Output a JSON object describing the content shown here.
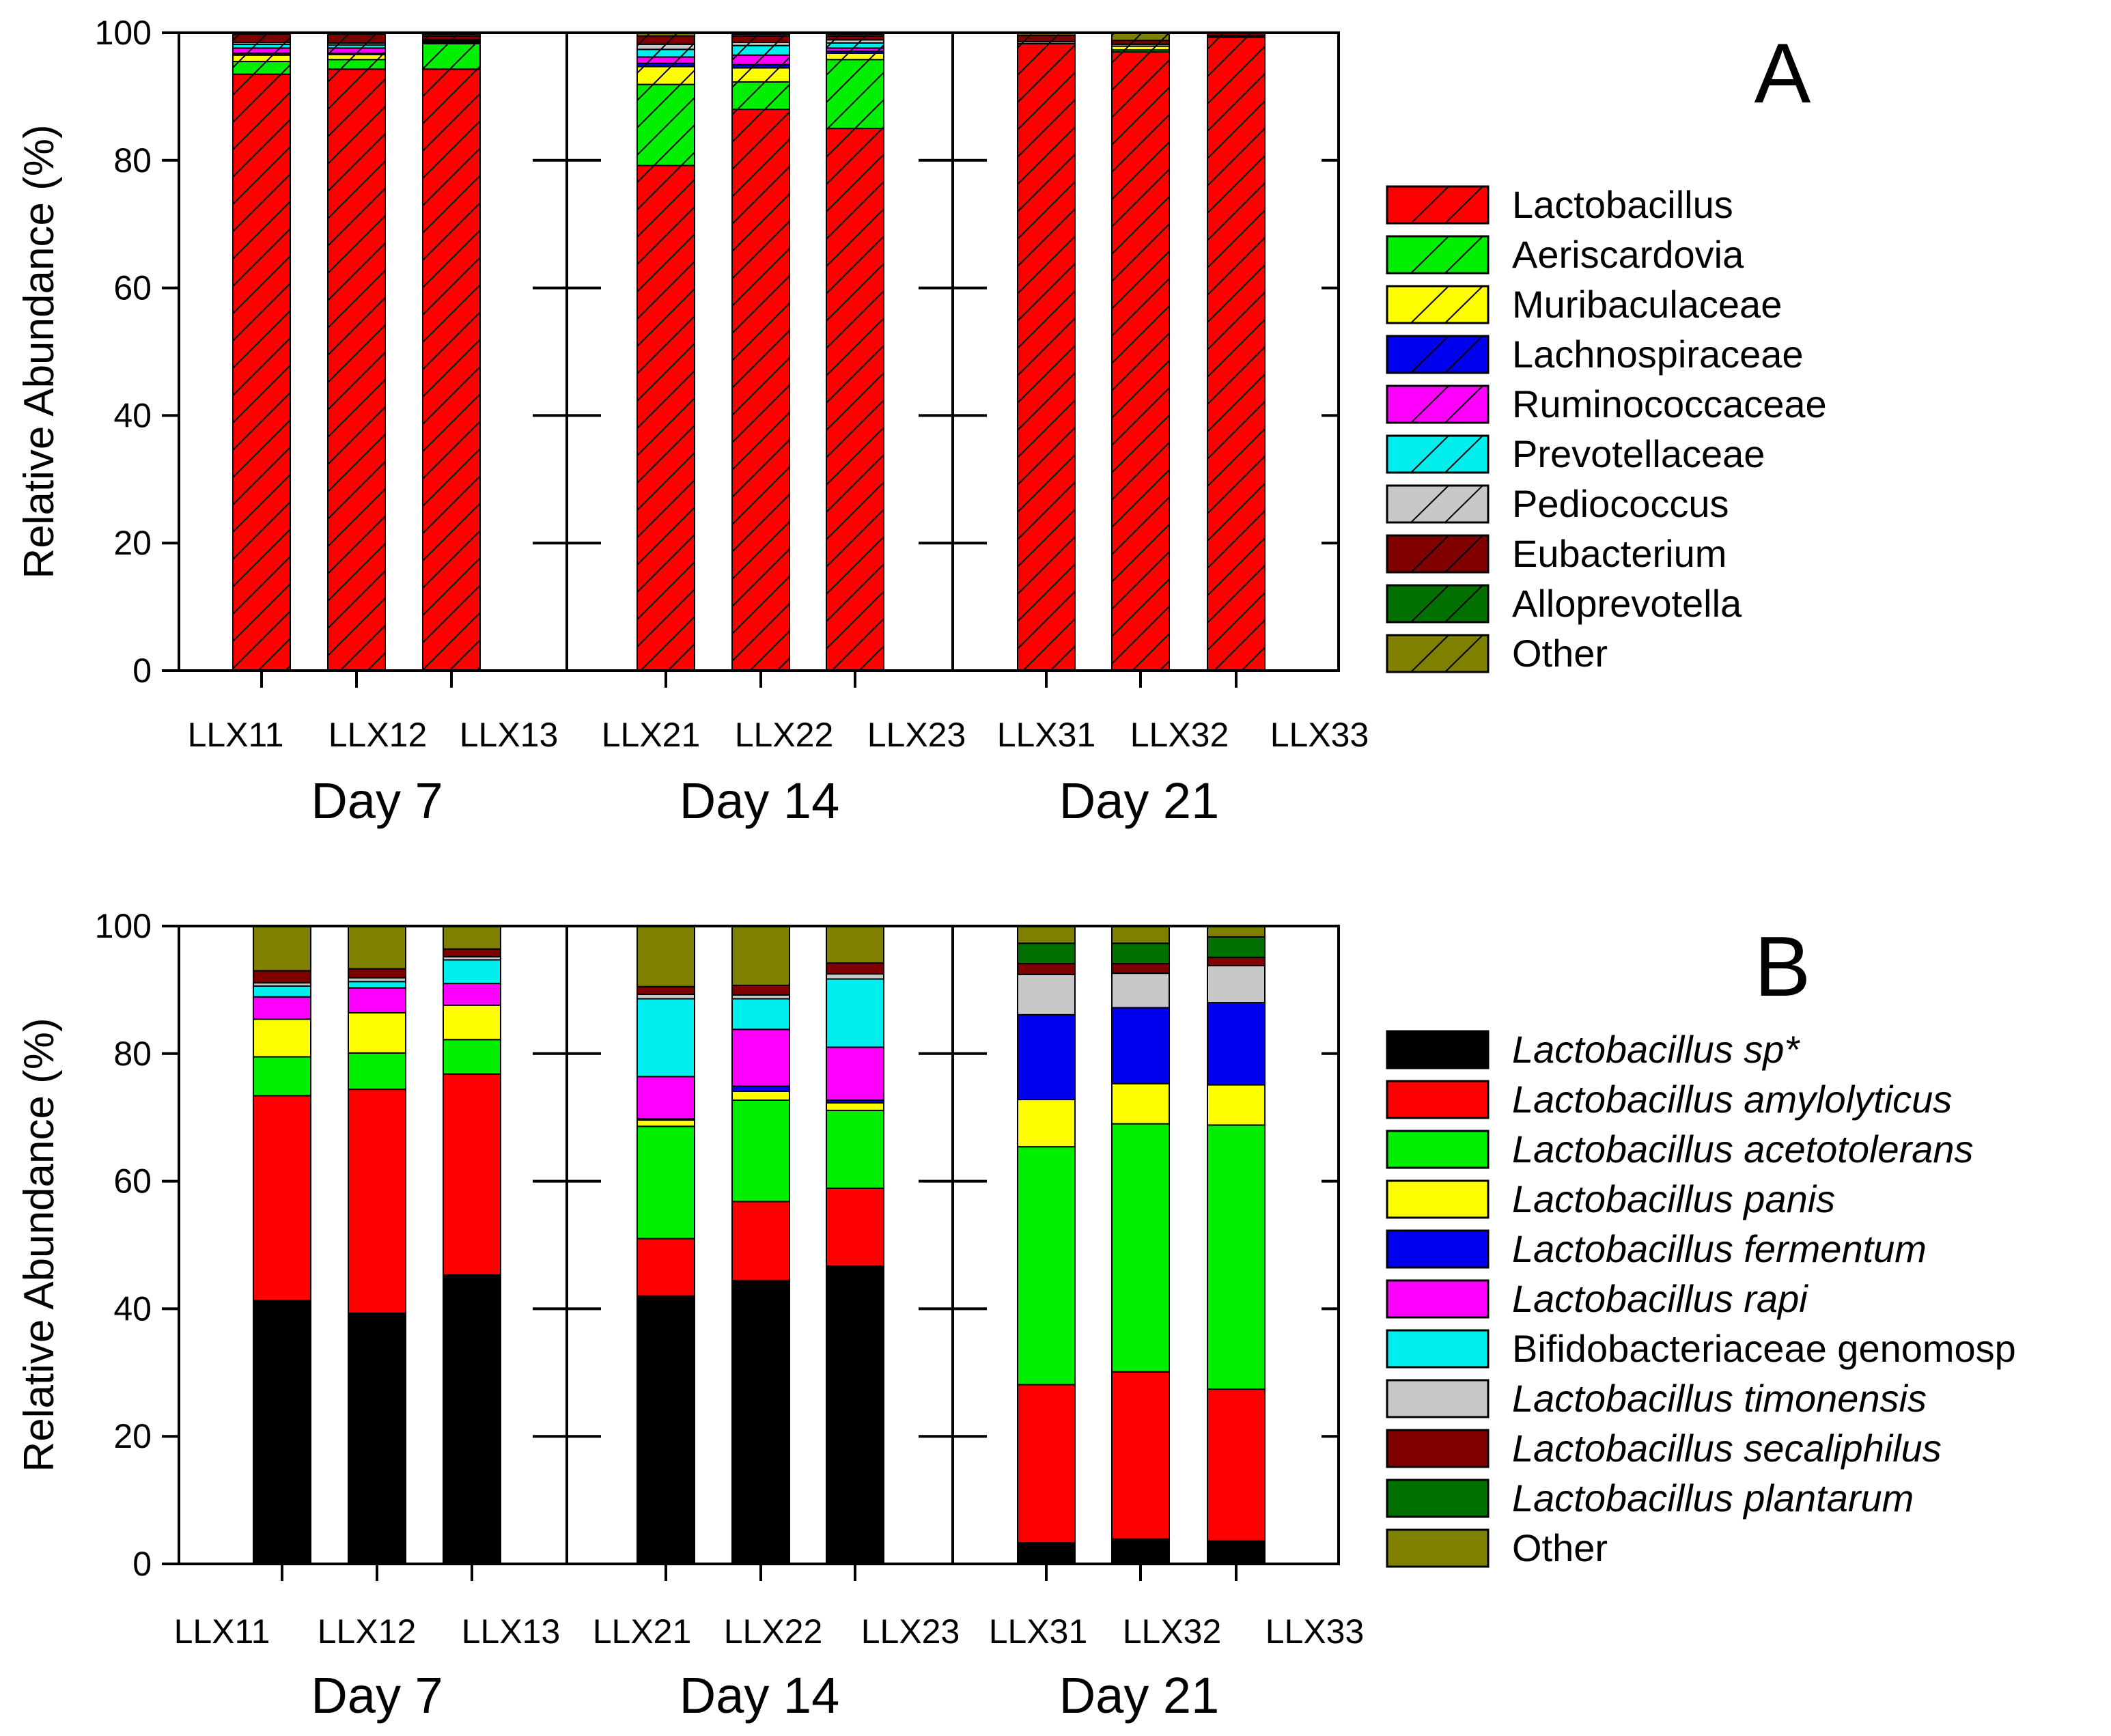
{
  "chart_data": [
    {
      "panel": "A",
      "type": "stacked_bar",
      "ylabel": "Relative Abundance (%)",
      "ylim": [
        0,
        100
      ],
      "yticks": [
        "0",
        "20",
        "40",
        "60",
        "80",
        "100"
      ],
      "groups": [
        "Day 7",
        "Day 14",
        "Day 21"
      ],
      "samples": [
        "LLX11",
        "LLX12",
        "LLX13",
        "LLX21",
        "LLX22",
        "LLX23",
        "LLX31",
        "LLX32",
        "LLX33"
      ],
      "hatched": true,
      "series": [
        {
          "name": "Lactobacillus",
          "color": "#ff0000",
          "italic": false,
          "values": [
            93.5,
            94.3,
            94.3,
            79.2,
            88.0,
            85.0,
            98.3,
            97.0,
            99.3
          ]
        },
        {
          "name": "Aeriscardovia",
          "color": "#00ee00",
          "italic": false,
          "values": [
            2.0,
            1.5,
            4.0,
            12.7,
            4.3,
            10.8,
            0.0,
            0.3,
            0.0
          ]
        },
        {
          "name": "Muribaculaceae",
          "color": "#ffff00",
          "italic": false,
          "values": [
            1.0,
            0.8,
            0.2,
            2.8,
            2.2,
            1.0,
            0.0,
            0.6,
            0.0
          ]
        },
        {
          "name": "Lachnospiraceae",
          "color": "#0000ee",
          "italic": false,
          "values": [
            0.3,
            0.2,
            0.1,
            0.5,
            0.5,
            0.3,
            0.0,
            0.0,
            0.0
          ]
        },
        {
          "name": "Ruminococcaceae",
          "color": "#ff00ff",
          "italic": false,
          "values": [
            0.8,
            0.8,
            0.1,
            1.0,
            1.5,
            0.5,
            0.0,
            0.0,
            0.0
          ]
        },
        {
          "name": "Prevotellaceae",
          "color": "#00eeee",
          "italic": false,
          "values": [
            0.6,
            0.5,
            0.1,
            1.2,
            1.5,
            0.8,
            0.0,
            0.0,
            0.0
          ]
        },
        {
          "name": "Pediococcus",
          "color": "#c8c8c8",
          "italic": false,
          "values": [
            0.3,
            0.3,
            0.1,
            0.8,
            0.5,
            0.5,
            0.3,
            0.3,
            0.2
          ]
        },
        {
          "name": "Eubacterium",
          "color": "#800000",
          "italic": false,
          "values": [
            1.3,
            1.4,
            0.6,
            1.3,
            1.0,
            0.6,
            1.0,
            0.6,
            0.4
          ]
        },
        {
          "name": "Alloprevotella",
          "color": "#007000",
          "italic": false,
          "values": [
            0.0,
            0.0,
            0.3,
            0.0,
            0.3,
            0.3,
            0.0,
            0.0,
            0.0
          ]
        },
        {
          "name": "Other",
          "color": "#808000",
          "italic": false,
          "values": [
            0.2,
            0.2,
            0.2,
            0.5,
            0.2,
            0.2,
            0.4,
            1.2,
            0.1
          ]
        }
      ]
    },
    {
      "panel": "B",
      "type": "stacked_bar",
      "ylabel": "Relative Abundance (%)",
      "ylim": [
        0,
        100
      ],
      "yticks": [
        "0",
        "20",
        "40",
        "60",
        "80",
        "100"
      ],
      "groups": [
        "Day 7",
        "Day 14",
        "Day 21"
      ],
      "samples": [
        "LLX11",
        "LLX12",
        "LLX13",
        "LLX21",
        "LLX22",
        "LLX23",
        "LLX31",
        "LLX32",
        "LLX33"
      ],
      "hatched": false,
      "series": [
        {
          "name": "Lactobacillus sp*",
          "color": "#000000",
          "italic": true,
          "values": [
            41.3,
            39.3,
            45.3,
            42.0,
            44.4,
            46.7,
            3.3,
            3.9,
            3.6
          ]
        },
        {
          "name": "Lactobacillus amylolyticus",
          "color": "#ff0000",
          "italic": true,
          "values": [
            32.1,
            35.1,
            31.5,
            9.0,
            12.4,
            12.2,
            24.8,
            26.2,
            23.8
          ]
        },
        {
          "name": "Lactobacillus acetotolerans",
          "color": "#00ee00",
          "italic": true,
          "values": [
            6.1,
            5.7,
            5.4,
            17.6,
            15.9,
            12.2,
            37.3,
            38.9,
            41.4
          ]
        },
        {
          "name": "Lactobacillus panis",
          "color": "#ffff00",
          "italic": true,
          "values": [
            5.9,
            6.3,
            5.4,
            1.0,
            1.4,
            1.2,
            7.4,
            6.3,
            6.3
          ]
        },
        {
          "name": "Lactobacillus fermentum",
          "color": "#0000ee",
          "italic": true,
          "values": [
            0.0,
            0.0,
            0.0,
            0.2,
            0.8,
            0.4,
            13.3,
            11.9,
            12.9
          ]
        },
        {
          "name": "Lactobacillus rapi",
          "color": "#ff00ff",
          "italic": true,
          "values": [
            3.5,
            3.9,
            3.4,
            6.6,
            8.9,
            8.3,
            0.0,
            0.0,
            0.0
          ]
        },
        {
          "name": "Bifidobacteriaceae genomosp",
          "color": "#00eeee",
          "italic": false,
          "values": [
            1.7,
            1.0,
            3.7,
            12.2,
            4.8,
            10.7,
            0.0,
            0.0,
            0.0
          ]
        },
        {
          "name": "Lactobacillus timonensis",
          "color": "#c8c8c8",
          "italic": true,
          "values": [
            0.5,
            0.6,
            0.5,
            0.7,
            0.6,
            0.8,
            6.3,
            5.4,
            5.8
          ]
        },
        {
          "name": "Lactobacillus secaliphilus",
          "color": "#800000",
          "italic": true,
          "values": [
            1.9,
            1.4,
            1.2,
            1.2,
            1.5,
            1.7,
            1.7,
            1.5,
            1.3
          ]
        },
        {
          "name": "Lactobacillus plantarum",
          "color": "#007000",
          "italic": true,
          "values": [
            0.0,
            0.0,
            0.0,
            0.0,
            0.0,
            0.0,
            3.2,
            3.2,
            3.2
          ]
        },
        {
          "name": "Other",
          "color": "#808000",
          "italic": false,
          "values": [
            7.0,
            6.7,
            3.6,
            9.5,
            9.3,
            5.8,
            2.8,
            2.7,
            1.7
          ]
        }
      ]
    }
  ]
}
